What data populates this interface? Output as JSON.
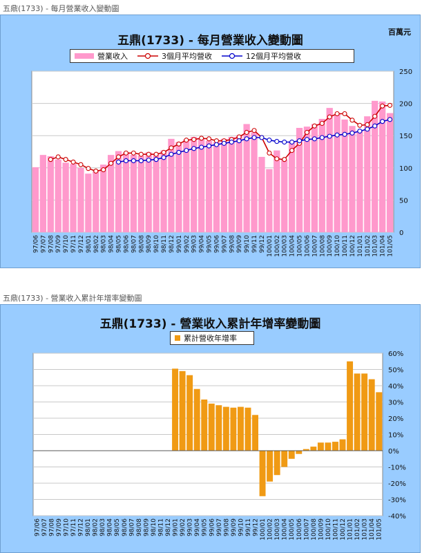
{
  "charts": {
    "top_caption": "五鼎(1733) - 每月營業收入變動圖",
    "bottom_caption": "五鼎(1733) - 營業收入累計年增率變動圖"
  },
  "colors": {
    "panel_bg": "#99ccff",
    "revenue_bar": "#ff99cc",
    "ma3_line": "#cc0000",
    "ma12_line": "#0000cc",
    "growth_bar": "#f09a14"
  },
  "chart_data": [
    {
      "type": "bar",
      "title": "五鼎(1733) - 每月營業收入變動圖",
      "unit_label": "百萬元",
      "ylim": [
        0,
        250
      ],
      "y_ticks": [
        0,
        50,
        100,
        150,
        200,
        250
      ],
      "y_axis_side": "right",
      "grid": true,
      "legend_position": "top",
      "categories": [
        "97/06",
        "97/07",
        "97/08",
        "97/09",
        "97/10",
        "97/11",
        "97/12",
        "98/01",
        "98/02",
        "98/03",
        "98/04",
        "98/05",
        "98/06",
        "98/07",
        "98/08",
        "98/09",
        "98/10",
        "98/11",
        "98/12",
        "99/01",
        "99/02",
        "99/03",
        "99/04",
        "99/05",
        "99/06",
        "99/07",
        "99/08",
        "99/09",
        "99/10",
        "99/11",
        "99/12",
        "100/01",
        "100/02",
        "100/03",
        "100/04",
        "100/05",
        "100/06",
        "100/07",
        "100/08",
        "100/09",
        "100/10",
        "100/11",
        "100/12",
        "101/01",
        "101/02",
        "101/03",
        "101/04",
        "101/05"
      ],
      "series": [
        {
          "name": "營業收入",
          "kind": "bar",
          "values": [
            101,
            120,
            118,
            113,
            108,
            106,
            100,
            91,
            95,
            105,
            120,
            126,
            124,
            120,
            119,
            124,
            121,
            127,
            145,
            140,
            144,
            148,
            145,
            142,
            140,
            145,
            148,
            150,
            168,
            155,
            117,
            98,
            127,
            113,
            140,
            162,
            164,
            168,
            176,
            193,
            183,
            175,
            165,
            157,
            180,
            204,
            203,
            185
          ]
        },
        {
          "name": "3個月平均營收",
          "kind": "line",
          "values": [
            null,
            null,
            113,
            117,
            113,
            109,
            105,
            99,
            95,
            97,
            107,
            117,
            123,
            123,
            121,
            121,
            121,
            124,
            131,
            137,
            143,
            144,
            146,
            145,
            142,
            142,
            144,
            148,
            155,
            158,
            147,
            123,
            114,
            113,
            127,
            138,
            155,
            165,
            169,
            179,
            184,
            184,
            174,
            166,
            167,
            180,
            196,
            197
          ]
        },
        {
          "name": "12個月平均營收",
          "kind": "line",
          "values": [
            null,
            null,
            null,
            null,
            null,
            null,
            null,
            null,
            null,
            null,
            null,
            109,
            111,
            111,
            111,
            112,
            113,
            116,
            121,
            124,
            127,
            130,
            132,
            134,
            136,
            138,
            140,
            142,
            145,
            147,
            147,
            143,
            141,
            140,
            140,
            142,
            144,
            145,
            147,
            149,
            151,
            152,
            154,
            157,
            160,
            165,
            172,
            175
          ]
        }
      ]
    },
    {
      "type": "bar",
      "title": "五鼎(1733) -  營業收入累計年增率變動圖",
      "ylim": [
        -40,
        60
      ],
      "y_ticks": [
        "-40%",
        "-30%",
        "-20%",
        "-10%",
        "0%",
        "10%",
        "20%",
        "30%",
        "40%",
        "50%",
        "60%"
      ],
      "y_axis_side": "right",
      "grid": true,
      "legend_position": "top",
      "categories": [
        "97/06",
        "97/07",
        "97/08",
        "97/09",
        "97/10",
        "97/11",
        "97/12",
        "98/01",
        "98/02",
        "98/03",
        "98/04",
        "98/05",
        "98/06",
        "98/07",
        "98/08",
        "98/09",
        "98/10",
        "98/11",
        "98/12",
        "99/01",
        "99/02",
        "99/03",
        "99/04",
        "99/05",
        "99/06",
        "99/07",
        "99/08",
        "99/09",
        "99/10",
        "99/11",
        "99/12",
        "100/01",
        "100/02",
        "100/03",
        "100/04",
        "100/05",
        "100/06",
        "100/07",
        "100/08",
        "100/09",
        "100/10",
        "100/11",
        "100/12",
        "101/01",
        "101/02",
        "101/03",
        "101/04",
        "101/05"
      ],
      "series": [
        {
          "name": "累計營收年增率",
          "values": [
            0,
            0,
            0,
            0,
            0,
            0,
            0,
            0,
            0,
            0,
            0,
            0,
            0,
            0,
            0,
            0,
            0,
            0,
            0,
            50.5,
            49,
            46.5,
            38,
            31.5,
            29,
            28,
            27,
            26.5,
            27,
            26.5,
            22,
            -28,
            -19,
            -15,
            -10,
            -5,
            -2,
            1,
            2.5,
            5,
            5,
            5.5,
            7,
            55,
            47.5,
            47.5,
            44,
            36
          ]
        }
      ]
    }
  ]
}
